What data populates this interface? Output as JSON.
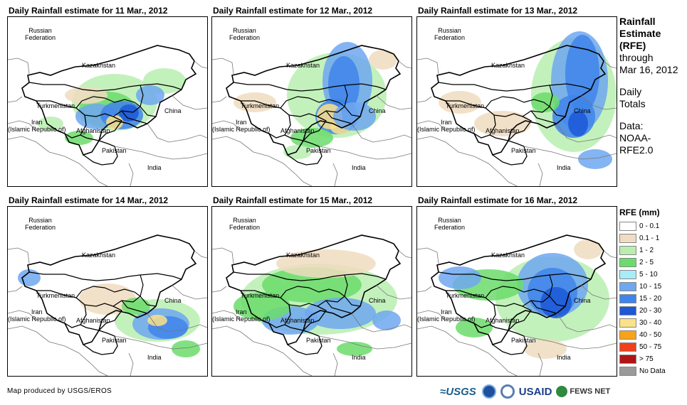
{
  "panels": [
    {
      "title": "Daily Rainfall estimate for 11 Mar., 2012"
    },
    {
      "title": "Daily Rainfall estimate for 12 Mar., 2012"
    },
    {
      "title": "Daily Rainfall estimate for 13 Mar., 2012"
    },
    {
      "title": "Daily Rainfall estimate for 14 Mar., 2012"
    },
    {
      "title": "Daily Rainfall estimate for 15 Mar., 2012"
    },
    {
      "title": "Daily Rainfall estimate for 16 Mar., 2012"
    }
  ],
  "labels": {
    "russia": "Russian\nFederation",
    "kazakhstan": "Kazakhstan",
    "turkmenistan": "Turkmenistan",
    "iran": "Iran\n(Islamic Republic of)",
    "afghanistan": "Afghanistan",
    "pakistan": "Pakistan",
    "china": "China",
    "india": "India"
  },
  "side": {
    "title_line1": "Rainfall",
    "title_line2": "Estimate",
    "title_line3": "(RFE)",
    "through": "through",
    "date": "Mar 16, 2012",
    "daily": "Daily",
    "totals": "Totals",
    "data_label": "Data:",
    "source_line1": "NOAA-",
    "source_line2": "RFE2.0"
  },
  "legend": {
    "title": "RFE (mm)",
    "items": [
      {
        "label": "0 - 0.1",
        "color": "#ffffff"
      },
      {
        "label": "0.1 - 1",
        "color": "#f0dcc0"
      },
      {
        "label": "1 - 2",
        "color": "#b9eeb0"
      },
      {
        "label": "2 - 5",
        "color": "#6bdc6b"
      },
      {
        "label": "5 - 10",
        "color": "#a8ecf8"
      },
      {
        "label": "10 - 15",
        "color": "#6fa7f0"
      },
      {
        "label": "15 - 20",
        "color": "#3f84ea"
      },
      {
        "label": "20 - 30",
        "color": "#1c58d8"
      },
      {
        "label": "30 - 40",
        "color": "#fbe18a"
      },
      {
        "label": "40 - 50",
        "color": "#f8a21a"
      },
      {
        "label": "50 - 75",
        "color": "#f0401e"
      },
      {
        "label": "> 75",
        "color": "#b01414"
      },
      {
        "label": "No Data",
        "color": "#9a9a9a"
      }
    ]
  },
  "footer": {
    "credit": "Map produced by USGS/EROS",
    "usgs": "≈USGS",
    "usaid": "USAID",
    "fews": "FEWS NET"
  },
  "icons": [
    "noaa-logo-icon",
    "dhs-seal-icon",
    "fews-globe-icon"
  ]
}
